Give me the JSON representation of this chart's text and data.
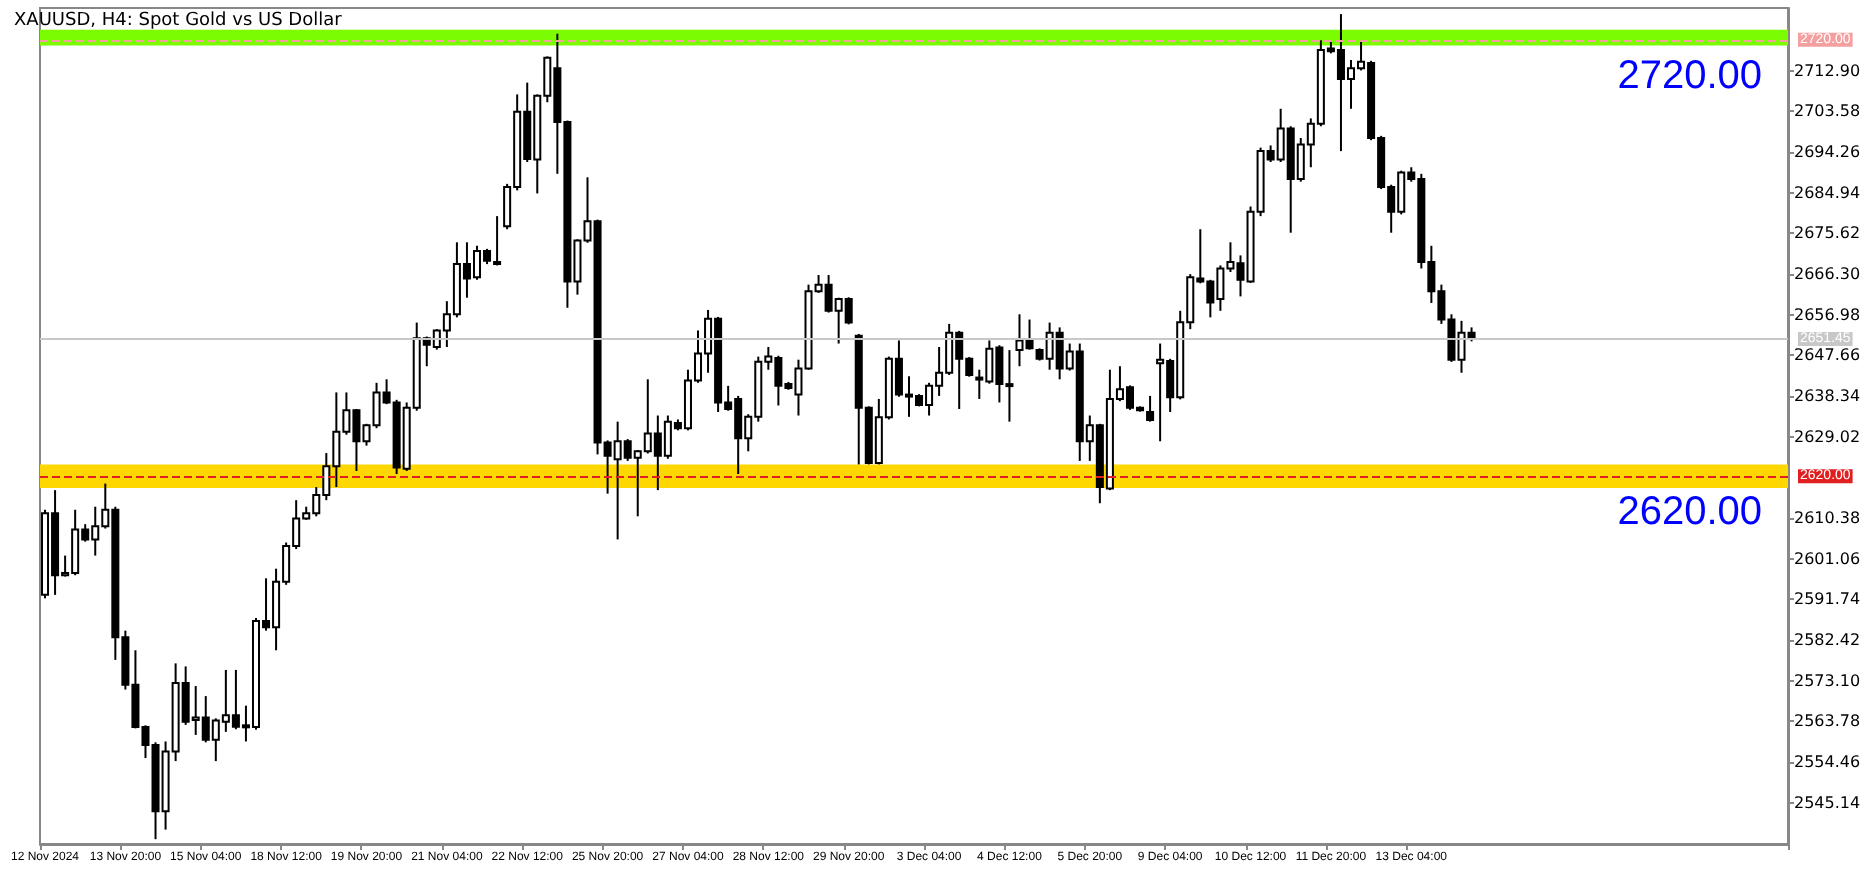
{
  "chart_data": {
    "type": "candlestick",
    "title": "XAUUSD, H4: Spot Gold vs US Dollar",
    "color": "#000000",
    "categories": [
      "12 Nov 2024",
      null,
      null,
      null,
      null,
      null,
      null,
      null,
      "13 Nov 20:00",
      null,
      null,
      null,
      null,
      null,
      null,
      null,
      "15 Nov 04:00",
      null,
      null,
      null,
      null,
      null,
      null,
      null,
      "18 Nov 12:00",
      null,
      null,
      null,
      null,
      null,
      null,
      null,
      "19 Nov 20:00",
      null,
      null,
      null,
      null,
      null,
      null,
      null,
      "21 Nov 04:00",
      null,
      null,
      null,
      null,
      null,
      null,
      null,
      "22 Nov 12:00",
      null,
      null,
      null,
      null,
      null,
      null,
      null,
      "25 Nov 20:00",
      null,
      null,
      null,
      null,
      null,
      null,
      null,
      "27 Nov 04:00",
      null,
      null,
      null,
      null,
      null,
      null,
      null,
      "28 Nov 12:00",
      null,
      null,
      null,
      null,
      null,
      null,
      null,
      "29 Nov 20:00",
      null,
      null,
      null,
      null,
      null,
      null,
      null,
      "3 Dec 04:00",
      null,
      null,
      null,
      null,
      null,
      null,
      null,
      "4 Dec 12:00",
      null,
      null,
      null,
      null,
      null,
      null,
      null,
      "5 Dec 20:00",
      null,
      null,
      null,
      null,
      null,
      null,
      null,
      "9 Dec 04:00",
      null,
      null,
      null,
      null,
      null,
      null,
      null,
      "10 Dec 12:00",
      null,
      null,
      null,
      null,
      null,
      null,
      null,
      "11 Dec 20:00",
      null,
      null,
      null,
      null,
      null,
      null,
      null,
      "13 Dec 04:00",
      null,
      null,
      null,
      null,
      null,
      null,
      null,
      null,
      null,
      null,
      null,
      null,
      null,
      null,
      null,
      null,
      null,
      null,
      null,
      null,
      null,
      null,
      null,
      null,
      null,
      null,
      null,
      null,
      null,
      null,
      null,
      null,
      null,
      null,
      null,
      null,
      null
    ],
    "ohlc": [
      [
        2592.8,
        2612.3,
        2592.0,
        2611.5
      ],
      [
        2611.5,
        2616.8,
        2592.8,
        2597.3
      ],
      [
        2597.3,
        2601.8,
        2597.0,
        2597.8
      ],
      [
        2597.8,
        2612.3,
        2597.3,
        2607.8
      ],
      [
        2607.8,
        2609.0,
        2605.0,
        2605.5
      ],
      [
        2605.5,
        2613.0,
        2601.8,
        2608.5
      ],
      [
        2608.5,
        2618.3,
        2608.0,
        2612.3
      ],
      [
        2612.3,
        2613.0,
        2577.9,
        2583.1
      ],
      [
        2583.1,
        2584.6,
        2571.1,
        2572.2
      ],
      [
        2572.2,
        2580.1,
        2562.2,
        2562.5
      ],
      [
        2562.5,
        2562.9,
        2555.4,
        2558.4
      ],
      [
        2558.4,
        2559.0,
        2536.8,
        2543.2
      ],
      [
        2543.2,
        2559.2,
        2539.0,
        2556.9
      ],
      [
        2556.9,
        2577.1,
        2554.7,
        2572.6
      ],
      [
        2572.6,
        2576.4,
        2563.0,
        2563.7
      ],
      [
        2564.1,
        2571.9,
        2560.7,
        2564.7
      ],
      [
        2564.7,
        2569.6,
        2559.0,
        2559.6
      ],
      [
        2559.6,
        2564.5,
        2554.7,
        2564.0
      ],
      [
        2563.7,
        2575.6,
        2561.4,
        2565.2
      ],
      [
        2565.2,
        2575.6,
        2562.0,
        2562.6
      ],
      [
        2562.9,
        2567.4,
        2559.2,
        2562.5
      ],
      [
        2562.5,
        2587.5,
        2561.9,
        2586.8
      ],
      [
        2586.8,
        2596.6,
        2584.6,
        2585.4
      ],
      [
        2585.4,
        2598.8,
        2580.1,
        2595.8
      ],
      [
        2595.8,
        2604.8,
        2595.1,
        2604.0
      ],
      [
        2604.0,
        2614.5,
        2603.3,
        2610.3
      ],
      [
        2610.3,
        2613.0,
        2610.0,
        2611.5
      ],
      [
        2611.5,
        2617.5,
        2610.8,
        2615.7
      ],
      [
        2615.7,
        2625.3,
        2614.5,
        2622.3
      ],
      [
        2622.3,
        2639.2,
        2617.5,
        2630.2
      ],
      [
        2630.2,
        2639.2,
        2629.5,
        2635.1
      ],
      [
        2635.1,
        2635.4,
        2621.2,
        2628.0
      ],
      [
        2628.0,
        2632.0,
        2627.0,
        2631.7
      ],
      [
        2631.7,
        2641.4,
        2631.0,
        2639.2
      ],
      [
        2639.2,
        2642.2,
        2636.5,
        2636.9
      ],
      [
        2636.9,
        2637.5,
        2620.5,
        2622.0
      ],
      [
        2621.7,
        2636.9,
        2621.2,
        2635.7
      ],
      [
        2635.7,
        2655.2,
        2635.0,
        2651.6
      ],
      [
        2651.6,
        2652.0,
        2645.2,
        2650.1
      ],
      [
        2649.6,
        2653.7,
        2649.0,
        2653.4
      ],
      [
        2653.4,
        2660.1,
        2649.6,
        2657.1
      ],
      [
        2657.1,
        2673.6,
        2656.4,
        2668.6
      ],
      [
        2668.6,
        2673.6,
        2660.9,
        2665.3
      ],
      [
        2665.6,
        2672.8,
        2665.0,
        2671.6
      ],
      [
        2671.6,
        2672.1,
        2668.6,
        2669.4
      ],
      [
        2668.6,
        2679.6,
        2668.3,
        2669.1
      ],
      [
        2677.3,
        2687.0,
        2676.6,
        2686.3
      ],
      [
        2686.3,
        2707.5,
        2685.5,
        2703.5
      ],
      [
        2703.5,
        2710.2,
        2692.0,
        2692.7
      ],
      [
        2692.6,
        2707.5,
        2684.8,
        2707.2
      ],
      [
        2707.2,
        2716.2,
        2705.7,
        2715.9
      ],
      [
        2713.5,
        2721.4,
        2689.3,
        2701.2
      ],
      [
        2701.2,
        2701.5,
        2658.6,
        2664.6
      ],
      [
        2664.6,
        2674.3,
        2661.6,
        2674.0
      ],
      [
        2674.0,
        2688.5,
        2673.5,
        2678.4
      ],
      [
        2678.4,
        2678.8,
        2625.0,
        2627.7
      ],
      [
        2627.7,
        2628.2,
        2616.0,
        2624.7
      ],
      [
        2623.9,
        2632.5,
        2605.5,
        2628.0
      ],
      [
        2628.0,
        2628.5,
        2623.5,
        2624.2
      ],
      [
        2624.2,
        2626.0,
        2610.8,
        2625.7
      ],
      [
        2625.7,
        2642.2,
        2625.2,
        2629.8
      ],
      [
        2629.8,
        2633.9,
        2616.8,
        2624.7
      ],
      [
        2624.7,
        2633.9,
        2624.0,
        2632.5
      ],
      [
        2632.2,
        2633.0,
        2630.5,
        2631.0
      ],
      [
        2631.0,
        2644.4,
        2630.5,
        2641.9
      ],
      [
        2641.9,
        2653.4,
        2641.4,
        2648.1
      ],
      [
        2648.1,
        2658.1,
        2643.7,
        2656.1
      ],
      [
        2656.1,
        2656.5,
        2634.7,
        2636.9
      ],
      [
        2636.9,
        2640.7,
        2635.0,
        2635.4
      ],
      [
        2637.7,
        2638.4,
        2620.5,
        2628.7
      ],
      [
        2628.7,
        2634.2,
        2625.7,
        2633.6
      ],
      [
        2633.6,
        2647.4,
        2632.5,
        2646.2
      ],
      [
        2646.2,
        2649.6,
        2644.4,
        2647.4
      ],
      [
        2647.1,
        2647.6,
        2636.2,
        2640.7
      ],
      [
        2641.1,
        2641.6,
        2639.8,
        2640.2
      ],
      [
        2638.7,
        2646.7,
        2633.9,
        2644.7
      ],
      [
        2644.7,
        2663.9,
        2644.4,
        2662.4
      ],
      [
        2662.4,
        2666.1,
        2662.0,
        2663.9
      ],
      [
        2663.9,
        2666.1,
        2657.5,
        2657.9
      ],
      [
        2657.9,
        2660.9,
        2650.4,
        2660.6
      ],
      [
        2660.6,
        2661.0,
        2654.8,
        2655.2
      ],
      [
        2652.2,
        2652.6,
        2622.7,
        2635.7
      ],
      [
        2635.7,
        2636.0,
        2622.7,
        2623.0
      ],
      [
        2623.0,
        2637.7,
        2622.7,
        2633.5
      ],
      [
        2633.5,
        2647.4,
        2633.0,
        2646.9
      ],
      [
        2646.9,
        2651.1,
        2638.2,
        2638.7
      ],
      [
        2638.7,
        2642.9,
        2633.6,
        2638.4
      ],
      [
        2638.4,
        2638.8,
        2636.0,
        2636.3
      ],
      [
        2636.3,
        2641.4,
        2633.9,
        2640.7
      ],
      [
        2640.7,
        2649.6,
        2638.4,
        2643.7
      ],
      [
        2643.7,
        2654.9,
        2643.2,
        2652.9
      ],
      [
        2652.9,
        2653.3,
        2635.4,
        2646.9
      ],
      [
        2646.9,
        2647.3,
        2642.8,
        2643.2
      ],
      [
        2642.2,
        2644.4,
        2637.7,
        2642.6
      ],
      [
        2641.7,
        2651.1,
        2641.2,
        2649.2
      ],
      [
        2649.5,
        2650.0,
        2636.9,
        2641.1
      ],
      [
        2641.0,
        2648.9,
        2632.5,
        2641.1
      ],
      [
        2648.9,
        2657.1,
        2645.2,
        2651.1
      ],
      [
        2651.1,
        2655.9,
        2649.0,
        2649.3
      ],
      [
        2648.9,
        2649.3,
        2646.5,
        2646.9
      ],
      [
        2646.9,
        2655.2,
        2644.4,
        2652.9
      ],
      [
        2652.9,
        2654.1,
        2642.2,
        2644.7
      ],
      [
        2644.7,
        2650.4,
        2644.2,
        2648.6
      ],
      [
        2648.6,
        2650.4,
        2623.5,
        2628.0
      ],
      [
        2628.0,
        2633.9,
        2623.5,
        2631.7
      ],
      [
        2631.7,
        2632.0,
        2613.8,
        2617.5
      ],
      [
        2617.2,
        2644.4,
        2616.8,
        2637.7
      ],
      [
        2637.7,
        2645.2,
        2637.2,
        2639.9
      ],
      [
        2640.4,
        2640.8,
        2635.2,
        2635.7
      ],
      [
        2635.7,
        2636.0,
        2634.8,
        2635.1
      ],
      [
        2634.7,
        2638.4,
        2632.5,
        2632.9
      ],
      [
        2645.9,
        2650.4,
        2628.0,
        2646.7
      ],
      [
        2646.4,
        2646.9,
        2634.7,
        2638.1
      ],
      [
        2638.1,
        2657.9,
        2637.6,
        2655.3
      ],
      [
        2655.3,
        2666.3,
        2653.7,
        2665.6
      ],
      [
        2665.3,
        2676.6,
        2664.2,
        2664.6
      ],
      [
        2664.6,
        2665.0,
        2656.4,
        2659.8
      ],
      [
        2660.6,
        2668.3,
        2657.9,
        2667.6
      ],
      [
        2667.6,
        2673.6,
        2666.8,
        2669.1
      ],
      [
        2668.8,
        2670.6,
        2661.2,
        2665.0
      ],
      [
        2664.6,
        2681.8,
        2664.3,
        2680.6
      ],
      [
        2680.6,
        2695.3,
        2679.6,
        2694.5
      ],
      [
        2694.5,
        2695.8,
        2692.0,
        2692.6
      ],
      [
        2692.6,
        2704.2,
        2692.0,
        2699.7
      ],
      [
        2699.7,
        2700.2,
        2675.8,
        2688.1
      ],
      [
        2688.1,
        2697.5,
        2687.5,
        2696.0
      ],
      [
        2696.0,
        2702.0,
        2690.8,
        2700.8
      ],
      [
        2700.8,
        2719.9,
        2700.2,
        2717.7
      ],
      [
        2718.0,
        2719.9,
        2716.9,
        2717.4
      ],
      [
        2717.7,
        2725.9,
        2694.5,
        2711.0
      ],
      [
        2711.0,
        2715.4,
        2704.2,
        2713.5
      ],
      [
        2713.5,
        2719.9,
        2713.0,
        2715.0
      ],
      [
        2714.7,
        2715.2,
        2697.0,
        2697.5
      ],
      [
        2697.5,
        2698.0,
        2685.8,
        2686.3
      ],
      [
        2686.3,
        2686.8,
        2675.8,
        2680.6
      ],
      [
        2680.6,
        2690.0,
        2680.0,
        2689.6
      ],
      [
        2689.6,
        2690.8,
        2687.5,
        2688.1
      ],
      [
        2688.1,
        2689.3,
        2667.6,
        2669.1
      ],
      [
        2669.1,
        2672.8,
        2659.7,
        2662.4
      ],
      [
        2662.4,
        2663.9,
        2654.9,
        2655.9
      ],
      [
        2655.9,
        2657.1,
        2646.2,
        2646.7
      ],
      [
        2646.7,
        2655.6,
        2643.7,
        2652.9
      ],
      [
        2652.9,
        2654.1,
        2650.9,
        2651.45
      ],
      null,
      null,
      null,
      null,
      null,
      null,
      null,
      null,
      null,
      null,
      null,
      null,
      null,
      null,
      null,
      null,
      null,
      null,
      null,
      null,
      null,
      null,
      null,
      null,
      null,
      null,
      null,
      null,
      null,
      null,
      null
    ],
    "ylim": [
      2535.7,
      2727.3
    ],
    "yticks": [
      2545.14,
      2554.46,
      2563.78,
      {
        "value": 2573.1,
        "label": "2573.10"
      },
      2582.42,
      2591.74,
      2601.06,
      2610.38,
      2629.02,
      2638.34,
      2647.66,
      2656.98,
      {
        "value": 2666.3,
        "label": "2666.30"
      },
      2675.62,
      2684.94,
      2694.26,
      2703.58,
      {
        "value": 2712.9,
        "label": "2712.90"
      }
    ],
    "ref_lines": [
      {
        "axis": "y",
        "value": 2720,
        "label": "2720.00",
        "color": "#f4a0a0",
        "line_style": "dashed"
      },
      {
        "axis": "y",
        "value": 2620,
        "label": "2620.00",
        "color": "#e02020",
        "line_style": "dashed"
      },
      {
        "axis": "y",
        "value": 2651.45,
        "label": "2651.45",
        "color": "#c8c8c8",
        "line_style": "solid"
      }
    ],
    "bands": [
      {
        "axis": "y",
        "from": 2718.7,
        "to": 2722.3,
        "color": "#7cfc00"
      },
      {
        "axis": "y",
        "from": 2617.3,
        "to": 2622.7,
        "color": "#ffd700"
      }
    ],
    "annotations": [
      "2720.00",
      "2620.00"
    ]
  }
}
